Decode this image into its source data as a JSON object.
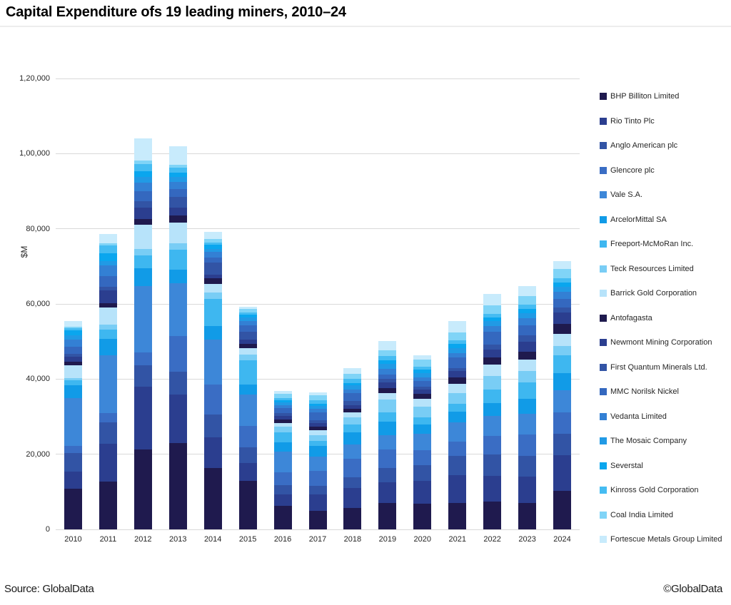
{
  "title": "Capital Expenditure ofs 19 leading miners, 2010–24",
  "footer": {
    "source": "Source: GlobalData",
    "copyright": "©GlobalData"
  },
  "chart_data": {
    "type": "bar",
    "stacked": true,
    "title": "Capital Expenditure ofs 19 leading miners, 2010–24",
    "xlabel": "",
    "ylabel": "$M",
    "ylim": [
      0,
      120000
    ],
    "ytick_interval": 20000,
    "ytick_labels": [
      "0",
      "20,000",
      "40,000",
      "60,000",
      "80,000",
      "1,00,000",
      "1,20,000"
    ],
    "grid": true,
    "gridline_color": "#d9d9d9",
    "legend_position": "right",
    "categories": [
      "2010",
      "2011",
      "2012",
      "2013",
      "2014",
      "2015",
      "2016",
      "2017",
      "2018",
      "2019",
      "2020",
      "2021",
      "2022",
      "2023",
      "2024"
    ],
    "series": [
      {
        "name": "BHP Billiton Limited",
        "color": "#1f1a4e",
        "values": [
          10800,
          12700,
          21300,
          22900,
          16300,
          12900,
          6300,
          4900,
          5700,
          7000,
          6800,
          7000,
          7500,
          7000,
          10200
        ]
      },
      {
        "name": "Rio Tinto Plc",
        "color": "#2b3e8f",
        "values": [
          4600,
          10000,
          16600,
          13000,
          8200,
          4700,
          3000,
          4500,
          5400,
          5500,
          6200,
          7400,
          6800,
          7100,
          9600
        ]
      },
      {
        "name": "Anglo American plc",
        "color": "#3254a5",
        "values": [
          5000,
          5700,
          5700,
          6000,
          6000,
          4200,
          2400,
          2200,
          2800,
          3800,
          4100,
          5200,
          5700,
          5500,
          5600
        ]
      },
      {
        "name": "Glencore plc",
        "color": "#3a6dc4",
        "values": [
          1900,
          2500,
          3500,
          9500,
          8000,
          5700,
          3500,
          4000,
          4900,
          5000,
          4000,
          3800,
          4800,
          5600,
          5700
        ]
      },
      {
        "name": "Vale S.A.",
        "color": "#3d87d8",
        "values": [
          12700,
          15500,
          17700,
          14200,
          12000,
          8400,
          5500,
          3800,
          3800,
          3700,
          4400,
          5000,
          5400,
          5500,
          6000
        ]
      },
      {
        "name": "ArcelorMittal SA",
        "color": "#119be7",
        "values": [
          3300,
          4300,
          4700,
          3500,
          3700,
          2700,
          2400,
          2800,
          3300,
          3600,
          2400,
          3000,
          3500,
          4100,
          4400
        ]
      },
      {
        "name": "Freeport-McMoRan Inc.",
        "color": "#3eb7f0",
        "values": [
          1400,
          2500,
          3500,
          5300,
          7200,
          6400,
          2800,
          1400,
          2000,
          2600,
          2000,
          2100,
          3500,
          4300,
          4800
        ]
      },
      {
        "name": "Teck Resources Limited",
        "color": "#79cdf5",
        "values": [
          600,
          1300,
          1600,
          1800,
          1600,
          1500,
          1400,
          1500,
          1900,
          3300,
          2700,
          2800,
          3600,
          3000,
          2600
        ]
      },
      {
        "name": "Barrick Gold Corporation",
        "color": "#b7e3fa",
        "values": [
          3300,
          4500,
          6400,
          5500,
          2400,
          1700,
          1100,
          1400,
          1400,
          1700,
          2100,
          2400,
          3000,
          3100,
          3200
        ]
      },
      {
        "name": "Antofagasta",
        "color": "#1f1a4e",
        "values": [
          1000,
          1300,
          1700,
          1900,
          1400,
          1200,
          800,
          900,
          900,
          1500,
          1300,
          1800,
          1900,
          2100,
          2600
        ]
      },
      {
        "name": "Newmont Mining Corporation",
        "color": "#2b3e8f",
        "values": [
          1400,
          3300,
          3000,
          2000,
          1100,
          1200,
          1100,
          900,
          1000,
          1500,
          1200,
          1700,
          2100,
          2700,
          3000
        ]
      },
      {
        "name": "First Quantum Minerals Ltd.",
        "color": "#3254a5",
        "values": [
          800,
          1000,
          1700,
          2900,
          3100,
          2000,
          700,
          800,
          1100,
          800,
          700,
          800,
          1300,
          1600,
          1300
        ]
      },
      {
        "name": "MMC Norilsk Nickel",
        "color": "#3468bf",
        "values": [
          1800,
          2800,
          2700,
          2000,
          1300,
          1700,
          1400,
          2000,
          2000,
          1300,
          1700,
          2800,
          3600,
          2700,
          2400
        ]
      },
      {
        "name": "Vedanta Limited",
        "color": "#3380d4",
        "values": [
          2000,
          2800,
          2200,
          1900,
          1500,
          1100,
          600,
          1000,
          1100,
          1400,
          900,
          1200,
          1400,
          1900,
          1900
        ]
      },
      {
        "name": "The Mosaic Company",
        "color": "#219ae5",
        "values": [
          1000,
          1300,
          1600,
          1400,
          900,
          1000,
          800,
          800,
          1000,
          1300,
          1100,
          1300,
          1300,
          1400,
          1200
        ]
      },
      {
        "name": "Severstal",
        "color": "#0aa6ee",
        "values": [
          1400,
          2000,
          1400,
          1100,
          1000,
          700,
          600,
          600,
          700,
          1100,
          1000,
          1100,
          1100,
          1100,
          1200
        ]
      },
      {
        "name": "Kinross Gold Corporation",
        "color": "#45bcf2",
        "values": [
          500,
          2000,
          2000,
          1300,
          600,
          600,
          600,
          900,
          1000,
          1100,
          800,
          900,
          800,
          1100,
          1100
        ]
      },
      {
        "name": "Coal India Limited",
        "color": "#80d4f7",
        "values": [
          500,
          700,
          800,
          900,
          1000,
          1000,
          1100,
          1300,
          1400,
          1500,
          1800,
          2200,
          2300,
          2400,
          2500
        ]
      },
      {
        "name": "Fortescue Metals Group Limited",
        "color": "#c8ebfc",
        "values": [
          1500,
          2400,
          6000,
          4900,
          1900,
          600,
          700,
          700,
          1600,
          2400,
          1200,
          3000,
          3100,
          2500,
          2200
        ]
      }
    ]
  }
}
